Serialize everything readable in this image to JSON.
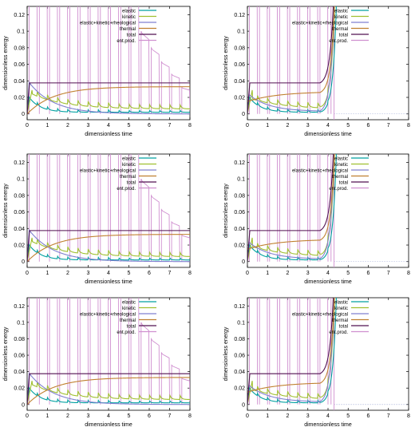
{
  "chart_data": [
    {
      "type": "line",
      "row": 0,
      "col": 0,
      "xlabel": "dimensionless time",
      "ylabel": "dimensionless energy",
      "xlim": [
        0,
        8
      ],
      "ylim": [
        -0.007,
        0.13
      ],
      "xticks": [
        "0",
        "1",
        "2",
        "3",
        "4",
        "5",
        "6",
        "7",
        "8"
      ],
      "yticks": [
        "0",
        "0.02",
        "0.04",
        "0.06",
        "0.08",
        "0.1",
        "0.12"
      ],
      "legend": "top-right",
      "series": [
        {
          "name": "elastic",
          "color": "#00a0a0"
        },
        {
          "name": "kinetic",
          "color": "#a0c030"
        },
        {
          "name": "elastic+kinetic+rheological",
          "color": "#8080d0"
        },
        {
          "name": "thermal",
          "color": "#c08030"
        },
        {
          "name": "total",
          "color": "#501050"
        },
        {
          "name": "ent.prod.",
          "color": "#d090d0"
        }
      ]
    },
    {
      "type": "line",
      "row": 0,
      "col": 1,
      "xlabel": "dimensionless time",
      "ylabel": "dimensionless energy",
      "xlim": [
        0,
        8
      ],
      "ylim": [
        -0.007,
        0.13
      ],
      "xticks": [
        "0",
        "1",
        "2",
        "3",
        "4",
        "5",
        "6",
        "7",
        "8"
      ],
      "yticks": [
        "0",
        "0.02",
        "0.04",
        "0.06",
        "0.08",
        "0.1",
        "0.12"
      ],
      "legend": "top-right",
      "series": [
        {
          "name": "elastic",
          "color": "#00a0a0"
        },
        {
          "name": "kinetic",
          "color": "#a0c030"
        },
        {
          "name": "elastic+kinetic+rheological",
          "color": "#8080d0"
        },
        {
          "name": "thermal",
          "color": "#c08030"
        },
        {
          "name": "total",
          "color": "#501050"
        },
        {
          "name": "ent.prod.",
          "color": "#d090d0"
        }
      ]
    },
    {
      "type": "line",
      "row": 1,
      "col": 0,
      "xlabel": "dimensionless time",
      "ylabel": "dimensionless energy",
      "xlim": [
        0,
        8
      ],
      "ylim": [
        -0.007,
        0.13
      ],
      "xticks": [
        "0",
        "1",
        "2",
        "3",
        "4",
        "5",
        "6",
        "7",
        "8"
      ],
      "yticks": [
        "0",
        "0.02",
        "0.04",
        "0.06",
        "0.08",
        "0.1",
        "0.12"
      ],
      "legend": "top-right",
      "series": [
        {
          "name": "elastic",
          "color": "#00a0a0"
        },
        {
          "name": "kinetic",
          "color": "#a0c030"
        },
        {
          "name": "elastic+kinetic+rheological",
          "color": "#8080d0"
        },
        {
          "name": "thermal",
          "color": "#c08030"
        },
        {
          "name": "total",
          "color": "#501050"
        },
        {
          "name": "ent.prod.",
          "color": "#d090d0"
        }
      ]
    },
    {
      "type": "line",
      "row": 1,
      "col": 1,
      "xlabel": "dimensionless time",
      "ylabel": "dimensionless energy",
      "xlim": [
        0,
        8
      ],
      "ylim": [
        -0.007,
        0.13
      ],
      "xticks": [
        "0",
        "1",
        "2",
        "3",
        "4",
        "5",
        "6",
        "7",
        "8"
      ],
      "yticks": [
        "0",
        "0.02",
        "0.04",
        "0.06",
        "0.08",
        "0.1",
        "0.12"
      ],
      "legend": "top-right",
      "series": [
        {
          "name": "elastic",
          "color": "#00a0a0"
        },
        {
          "name": "kinetic",
          "color": "#a0c030"
        },
        {
          "name": "elastic+kinetic+rheological",
          "color": "#8080d0"
        },
        {
          "name": "thermal",
          "color": "#c08030"
        },
        {
          "name": "total",
          "color": "#501050"
        },
        {
          "name": "ent.prod.",
          "color": "#d090d0"
        }
      ]
    },
    {
      "type": "line",
      "row": 2,
      "col": 0,
      "xlabel": "dimensionless time",
      "ylabel": "dimensionless energy",
      "xlim": [
        0,
        8
      ],
      "ylim": [
        -0.007,
        0.13
      ],
      "xticks": [
        "0",
        "1",
        "2",
        "3",
        "4",
        "5",
        "6",
        "7",
        "8"
      ],
      "yticks": [
        "0",
        "0.02",
        "0.04",
        "0.06",
        "0.08",
        "0.1",
        "0.12"
      ],
      "legend": "top-right",
      "series": [
        {
          "name": "elastic",
          "color": "#00a0a0"
        },
        {
          "name": "kinetic",
          "color": "#a0c030"
        },
        {
          "name": "elastic+kinetic+rheological",
          "color": "#8080d0"
        },
        {
          "name": "thermal",
          "color": "#c08030"
        },
        {
          "name": "total",
          "color": "#501050"
        },
        {
          "name": "ent.prod.",
          "color": "#d090d0"
        }
      ]
    },
    {
      "type": "line",
      "row": 2,
      "col": 1,
      "xlabel": "dimensionless time",
      "ylabel": "dimensionless energy",
      "xlim": [
        0,
        8
      ],
      "ylim": [
        -0.007,
        0.13
      ],
      "xticks": [
        "0",
        "1",
        "2",
        "3",
        "4",
        "5",
        "6",
        "7",
        "8"
      ],
      "yticks": [
        "0",
        "0.02",
        "0.04",
        "0.06",
        "0.08",
        "0.1",
        "0.12"
      ],
      "legend": "top-right",
      "series": [
        {
          "name": "elastic",
          "color": "#00a0a0"
        },
        {
          "name": "kinetic",
          "color": "#a0c030"
        },
        {
          "name": "elastic+kinetic+rheological",
          "color": "#8080d0"
        },
        {
          "name": "thermal",
          "color": "#c08030"
        },
        {
          "name": "total",
          "color": "#501050"
        },
        {
          "name": "ent.prod.",
          "color": "#d090d0"
        }
      ]
    }
  ]
}
